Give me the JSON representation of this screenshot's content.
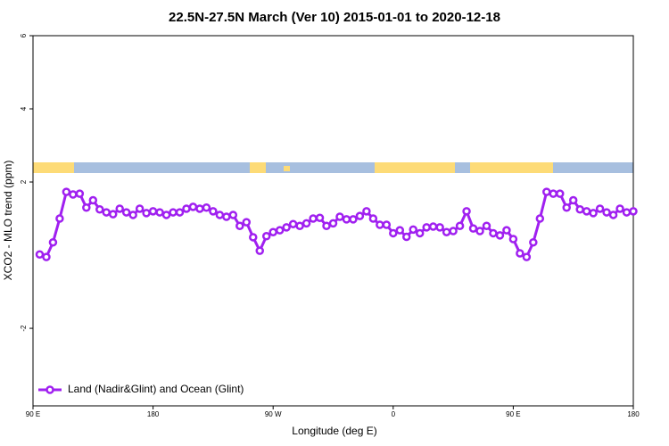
{
  "chart_data": {
    "type": "line",
    "title": "22.5N-27.5N March (Ver 10)   2015-01-01 to 2020-12-18",
    "x_label": "Longitude (deg E)",
    "y_label": "XCO2 - MLO trend (ppm)",
    "x": [
      95,
      100,
      105,
      110,
      115,
      120,
      125,
      130,
      135,
      140,
      145,
      150,
      155,
      160,
      165,
      170,
      175,
      180,
      185,
      190,
      195,
      200,
      205,
      210,
      215,
      220,
      225,
      230,
      235,
      240,
      245,
      250,
      255,
      260,
      265,
      270,
      275,
      280,
      285,
      290,
      295,
      300,
      305,
      310,
      315,
      320,
      325,
      330,
      335,
      340,
      345,
      350,
      355,
      360,
      365,
      370,
      375,
      380,
      385,
      390,
      395,
      400,
      405,
      410,
      415,
      420,
      425,
      430,
      435,
      440,
      445,
      450,
      455,
      460,
      465,
      470,
      475,
      480,
      485,
      490,
      495,
      500,
      505,
      510,
      515,
      520,
      525,
      530,
      535,
      540
    ],
    "series": [
      {
        "name": "Land (Nadir&Glint) and Ocean (Glint)",
        "color": "#a020f0",
        "values": [
          0.02,
          -0.05,
          0.35,
          1.0,
          1.73,
          1.66,
          1.68,
          1.3,
          1.5,
          1.25,
          1.17,
          1.12,
          1.27,
          1.17,
          1.1,
          1.27,
          1.15,
          1.2,
          1.17,
          1.1,
          1.17,
          1.17,
          1.27,
          1.32,
          1.27,
          1.3,
          1.2,
          1.1,
          1.05,
          1.1,
          0.8,
          0.9,
          0.49,
          0.12,
          0.52,
          0.63,
          0.68,
          0.76,
          0.85,
          0.8,
          0.87,
          1.0,
          1.02,
          0.8,
          0.87,
          1.05,
          0.98,
          0.98,
          1.07,
          1.2,
          1.0,
          0.83,
          0.83,
          0.6,
          0.68,
          0.5,
          0.7,
          0.6,
          0.76,
          0.78,
          0.76,
          0.63,
          0.66,
          0.8,
          1.2,
          0.73,
          0.66,
          0.8,
          0.6,
          0.54,
          0.68,
          0.44,
          0.05,
          -0.05,
          0.35,
          1.0,
          1.73,
          1.68,
          1.68,
          1.3,
          1.5,
          1.25,
          1.2,
          1.15,
          1.27,
          1.17,
          1.1,
          1.27,
          1.17,
          1.2
        ]
      }
    ],
    "xlim": [
      90,
      540
    ],
    "xticks": [
      {
        "value": 90,
        "label": "90 E"
      },
      180,
      {
        "value": 270,
        "label": "90 W"
      },
      {
        "value": 360,
        "label": "0"
      },
      {
        "value": 450,
        "label": "90 E"
      },
      {
        "value": 540,
        "label": "180"
      }
    ],
    "ylim": [
      -4.12,
      6
    ],
    "yticks": [
      -2,
      2,
      4,
      6
    ],
    "legend": "lower left"
  }
}
